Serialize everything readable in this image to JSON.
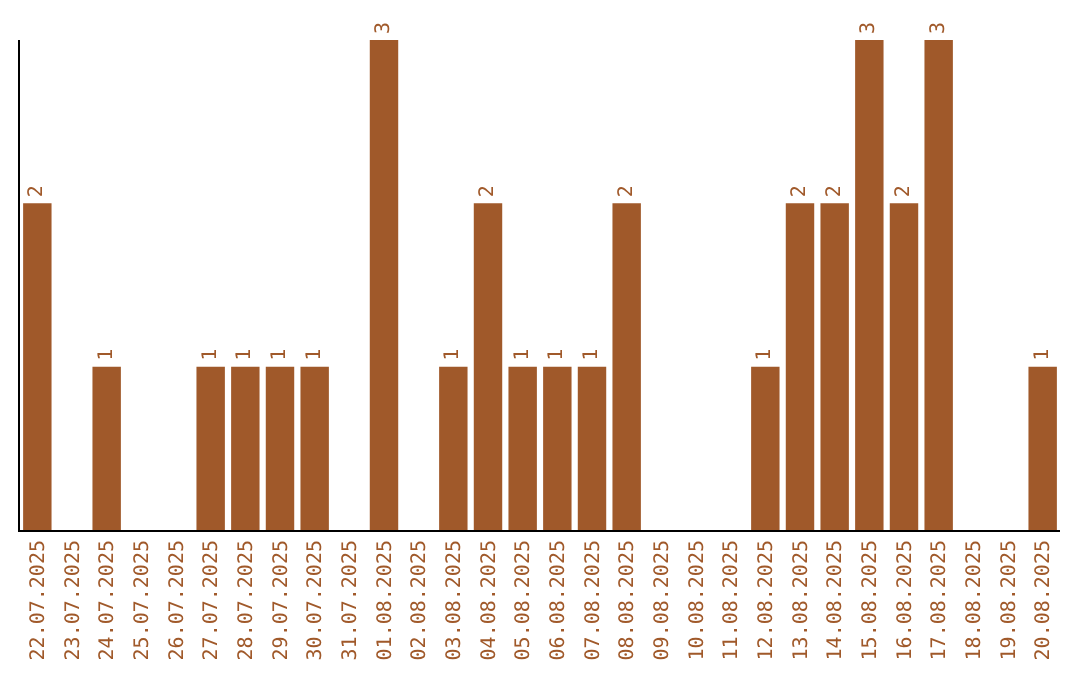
{
  "chart_data": {
    "type": "bar",
    "categories": [
      "22.07.2025",
      "23.07.2025",
      "24.07.2025",
      "25.07.2025",
      "26.07.2025",
      "27.07.2025",
      "28.07.2025",
      "29.07.2025",
      "30.07.2025",
      "31.07.2025",
      "01.08.2025",
      "02.08.2025",
      "03.08.2025",
      "04.08.2025",
      "05.08.2025",
      "06.08.2025",
      "07.08.2025",
      "08.08.2025",
      "09.08.2025",
      "10.08.2025",
      "11.08.2025",
      "12.08.2025",
      "13.08.2025",
      "14.08.2025",
      "15.08.2025",
      "16.08.2025",
      "17.08.2025",
      "18.08.2025",
      "19.08.2025",
      "20.08.2025"
    ],
    "values": [
      2,
      0,
      1,
      0,
      0,
      1,
      1,
      1,
      1,
      0,
      3,
      0,
      1,
      2,
      1,
      1,
      1,
      2,
      0,
      0,
      0,
      1,
      2,
      2,
      3,
      2,
      3,
      0,
      0,
      1
    ],
    "value_labels": [
      "2",
      null,
      "1",
      null,
      null,
      "1",
      "1",
      "1",
      "1",
      null,
      "3",
      null,
      "1",
      "2",
      "1",
      "1",
      "1",
      "2",
      null,
      null,
      null,
      "1",
      "2",
      "2",
      "3",
      "2",
      "3",
      null,
      null,
      "1"
    ],
    "color": "#a0592a"
  }
}
